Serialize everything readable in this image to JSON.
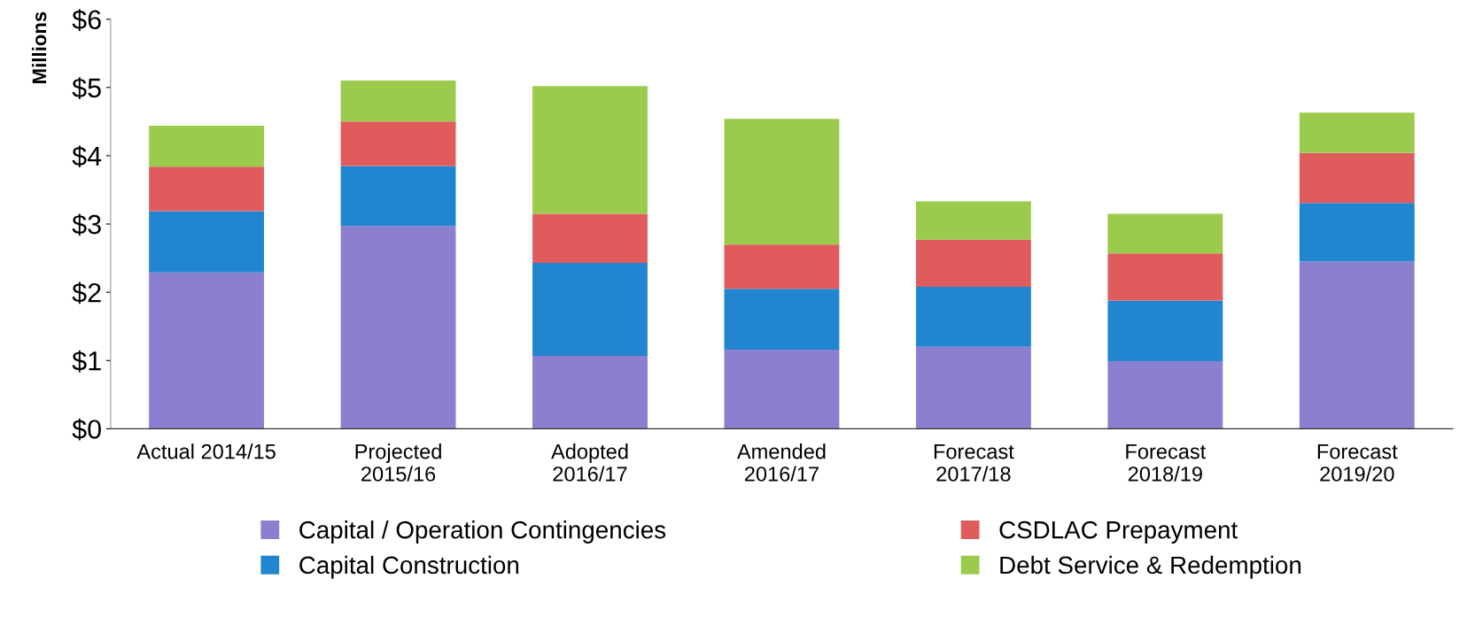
{
  "chart_data": {
    "type": "bar",
    "stacked": true,
    "ylabel": "Millions",
    "categories": [
      "Actual 2014/15",
      "Projected\n2015/16",
      "Adopted\n2016/17",
      "Amended\n2016/17",
      "Forecast\n2017/18",
      "Forecast\n2018/19",
      "Forecast\n2019/20"
    ],
    "series": [
      {
        "name": "Capital / Operation Contingencies",
        "color": "#8b80cf",
        "values": [
          2.29,
          2.97,
          1.07,
          1.16,
          1.2,
          0.99,
          2.45
        ]
      },
      {
        "name": "Capital Construction",
        "color": "#2185cf",
        "values": [
          0.9,
          0.88,
          1.36,
          0.89,
          0.88,
          0.89,
          0.86
        ]
      },
      {
        "name": "CSDLAC Prepayment",
        "color": "#e05c5c",
        "values": [
          0.65,
          0.65,
          0.72,
          0.65,
          0.69,
          0.69,
          0.73
        ]
      },
      {
        "name": "Debt Service & Redemption",
        "color": "#9bcb4c",
        "values": [
          0.6,
          0.6,
          1.87,
          1.84,
          0.56,
          0.58,
          0.59
        ]
      }
    ],
    "ylim": [
      0,
      6
    ],
    "yticks": [
      {
        "value": 0,
        "label": "$0"
      },
      {
        "value": 1,
        "label": "$1"
      },
      {
        "value": 2,
        "label": "$2"
      },
      {
        "value": 3,
        "label": "$3"
      },
      {
        "value": 4,
        "label": "$4"
      },
      {
        "value": 5,
        "label": "$5"
      },
      {
        "value": 6,
        "label": "$6"
      }
    ],
    "grid": false,
    "legend": "bottom"
  }
}
